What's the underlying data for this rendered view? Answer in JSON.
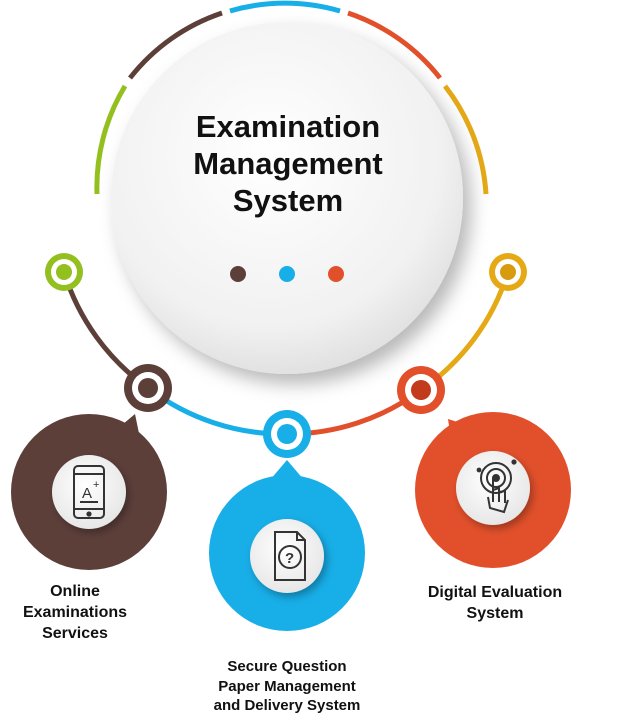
{
  "title": "Examination\nManagement\nSystem",
  "colors": {
    "brown": "#5d3f3a",
    "blue": "#18aee8",
    "orange_red": "#e2502b",
    "yellow": "#e5a916",
    "lime": "#93c01f"
  },
  "nodes": [
    {
      "label": "Online\nExaminations\nServices",
      "icon": "tablet-grade-icon",
      "color": "#5d3f3a"
    },
    {
      "label": "Secure Question\nPaper Management\nand Delivery System",
      "icon": "question-document-icon",
      "color": "#18aee8"
    },
    {
      "label": "Digital Evaluation\nSystem",
      "icon": "touch-target-icon",
      "color": "#e2502b"
    }
  ]
}
